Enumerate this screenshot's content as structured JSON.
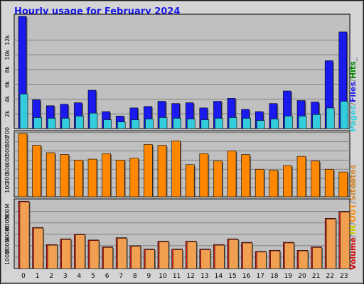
{
  "title": "Hourly usage for February 2024",
  "colors": {
    "frame_bg": "#d4d4d4",
    "plot_bg": "#c0c0c0",
    "title": "#1a1ae6",
    "pages": "#33ccdd",
    "files": "#1a1aee",
    "hits": "#008800",
    "visits": "#ff8800",
    "sites": "#cc8833",
    "volume": "#cc0000",
    "volume_fill": "#cc2222",
    "in_fill": "#f0a050",
    "in": "#c8c800",
    "out": "#ff8800"
  },
  "chart_data": [
    {
      "type": "bar",
      "panel": "hits-files-pages",
      "categories": [
        "0",
        "1",
        "2",
        "3",
        "4",
        "5",
        "6",
        "7",
        "8",
        "9",
        "10",
        "11",
        "12",
        "13",
        "14",
        "15",
        "16",
        "17",
        "18",
        "19",
        "20",
        "21",
        "22",
        "23"
      ],
      "series": [
        {
          "name": "Files",
          "values": [
            15200,
            3900,
            3100,
            3300,
            3500,
            5200,
            2300,
            1700,
            2800,
            3000,
            3700,
            3400,
            3500,
            2800,
            3700,
            4100,
            2600,
            2300,
            3400,
            5100,
            3800,
            3600,
            9200,
            13100
          ]
        },
        {
          "name": "Pages",
          "values": [
            4700,
            1500,
            1400,
            1400,
            1700,
            2100,
            1200,
            900,
            1200,
            1300,
            1500,
            1400,
            1300,
            1200,
            1400,
            1500,
            1400,
            1100,
            1300,
            1700,
            1700,
            1900,
            2800,
            3700
          ]
        }
      ],
      "yticks": [
        "2k",
        "4k",
        "6k",
        "8k",
        "10k",
        "12k"
      ],
      "ylim": [
        0,
        15500
      ],
      "legend": "right",
      "legend_parts": [
        {
          "text": "Pages",
          "color": "#33ccdd"
        },
        {
          "text": "/",
          "color": "#808080"
        },
        {
          "text": "Files",
          "color": "#1a1aee"
        },
        {
          "text": "/",
          "color": "#808080"
        },
        {
          "text": "Hits",
          "color": "#008800"
        },
        {
          "text": "_",
          "color": "#808080"
        }
      ]
    },
    {
      "type": "bar",
      "panel": "sites",
      "categories": [
        "0",
        "1",
        "2",
        "3",
        "4",
        "5",
        "6",
        "7",
        "8",
        "9",
        "10",
        "11",
        "12",
        "13",
        "14",
        "15",
        "16",
        "17",
        "18",
        "19",
        "20",
        "21",
        "22",
        "23"
      ],
      "series": [
        {
          "name": "Sites",
          "values": [
            690,
            560,
            480,
            460,
            400,
            410,
            470,
            400,
            420,
            570,
            560,
            610,
            350,
            470,
            390,
            500,
            460,
            300,
            290,
            340,
            440,
            390,
            300,
            270
          ]
        }
      ],
      "yticks": [
        "100",
        "200",
        "300",
        "400",
        "500",
        "600",
        "700"
      ],
      "ylim": [
        0,
        720
      ],
      "legend": "right",
      "legend_parts": [
        {
          "text": "Sites",
          "color": "#cc8833"
        }
      ]
    },
    {
      "type": "bar",
      "panel": "volume",
      "categories": [
        "0",
        "1",
        "2",
        "3",
        "4",
        "5",
        "6",
        "7",
        "8",
        "9",
        "10",
        "11",
        "12",
        "13",
        "14",
        "15",
        "16",
        "17",
        "18",
        "19",
        "20",
        "21",
        "22",
        "23"
      ],
      "series": [
        {
          "name": "Volume",
          "values": [
            590,
            360,
            210,
            260,
            300,
            250,
            190,
            270,
            200,
            170,
            240,
            170,
            240,
            170,
            210,
            260,
            230,
            150,
            160,
            230,
            160,
            190,
            440,
            500
          ]
        }
      ],
      "yticks": [
        "100M",
        "200M",
        "300M",
        "400M",
        "500M"
      ],
      "ylim": [
        0,
        610
      ],
      "legend": "right",
      "legend_parts": [
        {
          "text": "Volume",
          "color": "#cc0000"
        },
        {
          "text": "/",
          "color": "#808080"
        },
        {
          "text": "IN",
          "color": "#c8c800"
        },
        {
          "text": "/",
          "color": "#808080"
        },
        {
          "text": "OUT",
          "color": "#ff8800"
        },
        {
          "text": "/",
          "color": "#808080"
        },
        {
          "text": "Sites",
          "color": "#cc8833"
        }
      ]
    }
  ]
}
